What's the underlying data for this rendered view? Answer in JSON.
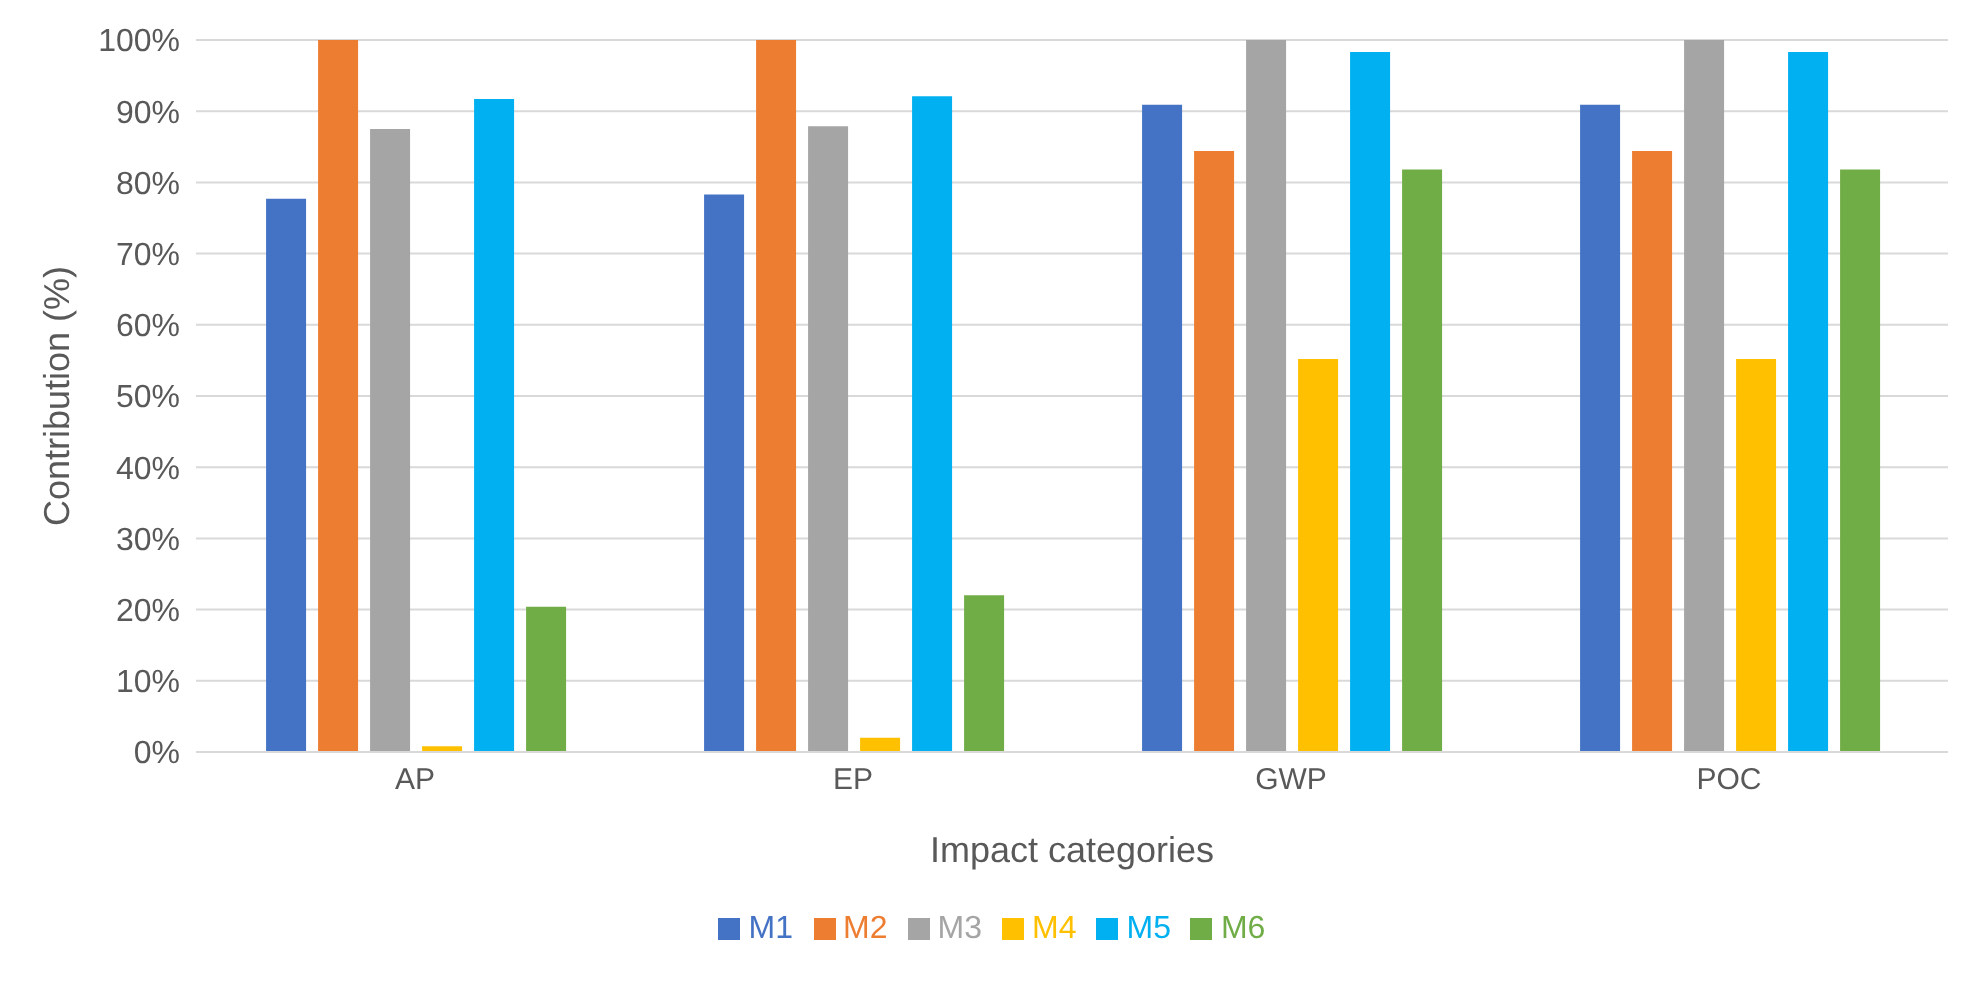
{
  "chart_data": {
    "type": "bar",
    "xlabel": "Impact categories",
    "ylabel": "Contribution (%)",
    "categories": [
      "AP",
      "EP",
      "GWP",
      "POC"
    ],
    "series": [
      {
        "name": "M1",
        "color": "#4472c4",
        "values": [
          77.7,
          78.3,
          90.9,
          90.9
        ]
      },
      {
        "name": "M2",
        "color": "#ed7d31",
        "values": [
          100,
          100,
          84.4,
          84.4
        ]
      },
      {
        "name": "M3",
        "color": "#a5a5a5",
        "values": [
          87.5,
          87.9,
          100,
          100
        ]
      },
      {
        "name": "M4",
        "color": "#ffc000",
        "values": [
          0.8,
          2,
          55.2,
          55.2
        ]
      },
      {
        "name": "M5",
        "color": "#00b0f0",
        "values": [
          91.7,
          92.1,
          98.3,
          98.3
        ]
      },
      {
        "name": "M6",
        "color": "#70ad47",
        "values": [
          20.4,
          22,
          81.8,
          81.8
        ]
      }
    ],
    "ylim": [
      0,
      100
    ],
    "yticks": [
      {
        "value": 0,
        "label": "0%"
      },
      {
        "value": 10,
        "label": "10%"
      },
      {
        "value": 20,
        "label": "20%"
      },
      {
        "value": 30,
        "label": "30%"
      },
      {
        "value": 40,
        "label": "40%"
      },
      {
        "value": 50,
        "label": "50%"
      },
      {
        "value": 60,
        "label": "60%"
      },
      {
        "value": 70,
        "label": "70%"
      },
      {
        "value": 80,
        "label": "80%"
      },
      {
        "value": 90,
        "label": "90%"
      },
      {
        "value": 100,
        "label": "100%"
      }
    ],
    "grid": "y",
    "legend": "bottom"
  }
}
